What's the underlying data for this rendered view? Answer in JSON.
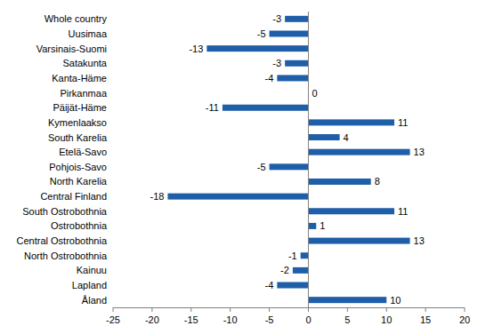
{
  "chart_data": {
    "type": "bar",
    "orientation": "horizontal",
    "categories": [
      "Whole country",
      "Uusimaa",
      "Varsinais-Suomi",
      "Satakunta",
      "Kanta-Häme",
      "Pirkanmaa",
      "Päijät-Häme",
      "Kymenlaakso",
      "South Karelia",
      "Etelä-Savo",
      "Pohjois-Savo",
      "North Karelia",
      "Central Finland",
      "South Ostrobothnia",
      "Ostrobothnia",
      "Central Ostrobothnia",
      "North Ostrobothnia",
      "Kainuu",
      "Lapland",
      "Åland"
    ],
    "values": [
      -3,
      -5,
      -13,
      -3,
      -4,
      0,
      -11,
      11,
      4,
      13,
      -5,
      8,
      -18,
      11,
      1,
      13,
      -1,
      -2,
      -4,
      10
    ],
    "color": "#1f5ea8",
    "xlim": [
      -25,
      20
    ],
    "xticks": [
      -25,
      -20,
      -15,
      -10,
      -5,
      0,
      5,
      10,
      15,
      20
    ],
    "grid": false,
    "data_labels": true
  }
}
